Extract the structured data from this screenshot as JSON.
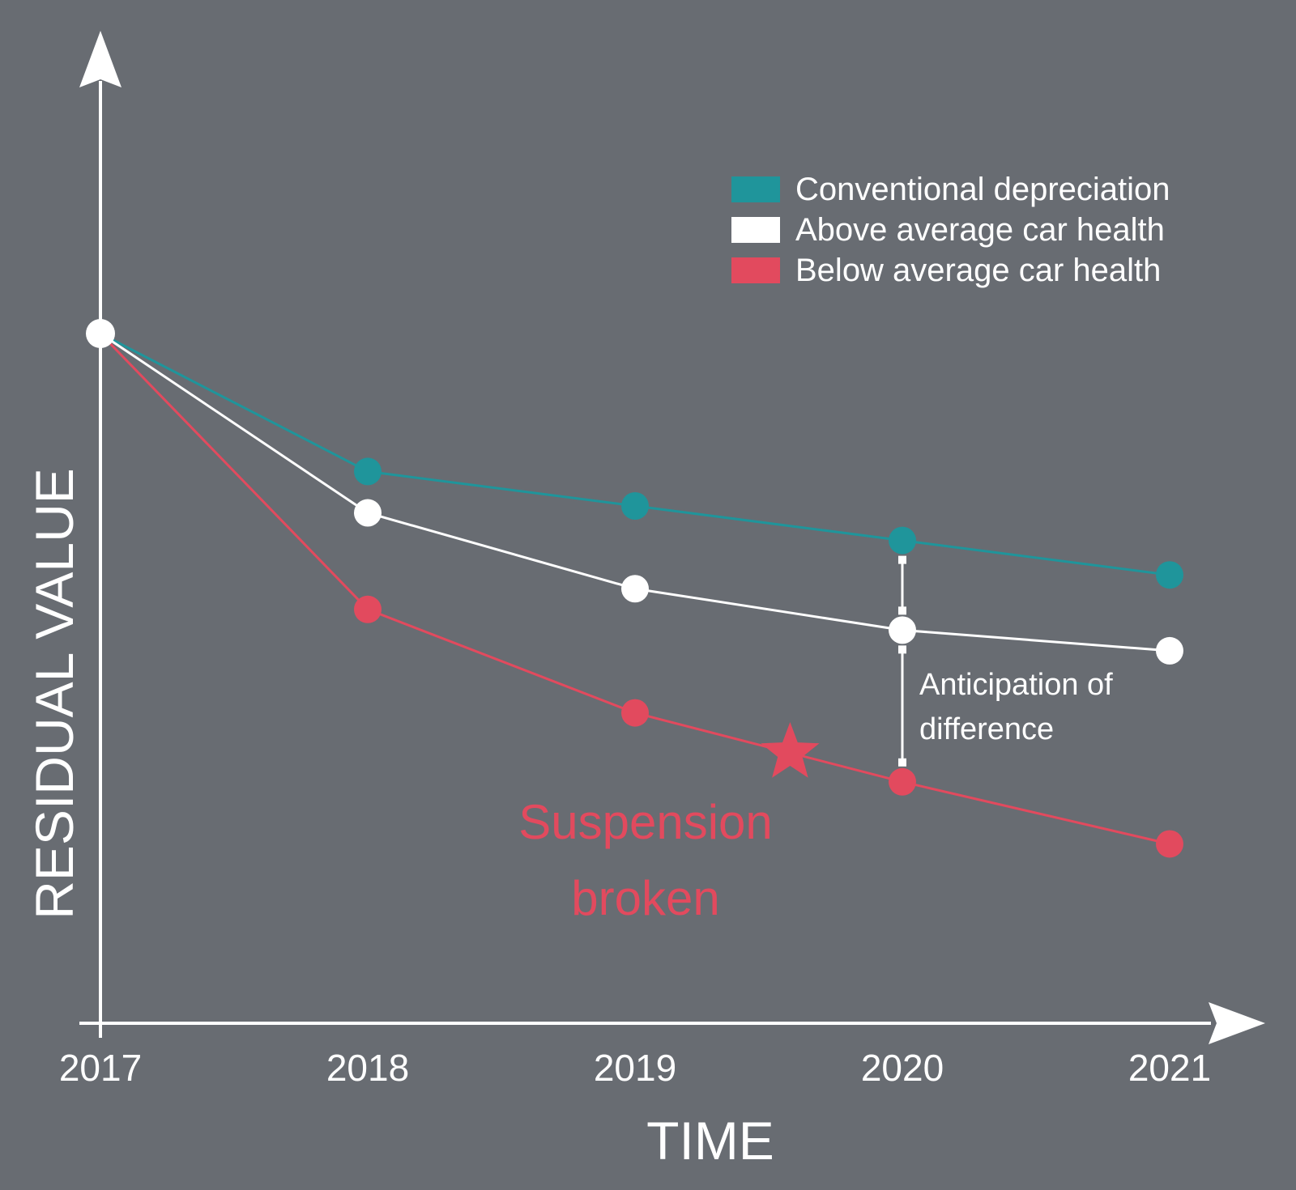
{
  "chart_data": {
    "type": "line",
    "x": [
      "2017",
      "2018",
      "2019",
      "2020",
      "2021"
    ],
    "xlabel": "TIME",
    "ylabel": "RESIDUAL VALUE",
    "ylim": [
      0,
      100
    ],
    "series": [
      {
        "name": "Conventional depreciation",
        "color": "#1f959b",
        "values": [
          100,
          80,
          75,
          70,
          65
        ]
      },
      {
        "name": "Above average car health",
        "color": "#ffffff",
        "values": [
          100,
          74,
          63,
          57,
          54
        ]
      },
      {
        "name": "Below average car health",
        "color": "#e24a5e",
        "values": [
          100,
          60,
          45,
          35,
          26
        ]
      }
    ],
    "annotations": {
      "difference_label_lines": [
        "Anticipation of",
        "difference"
      ],
      "event_label_lines": [
        "Suspension",
        "broken"
      ],
      "event_color": "#e24a5e",
      "event_x": 2019.58,
      "event_icon": "star-icon"
    },
    "legend_position": "top-right",
    "grid": false
  }
}
